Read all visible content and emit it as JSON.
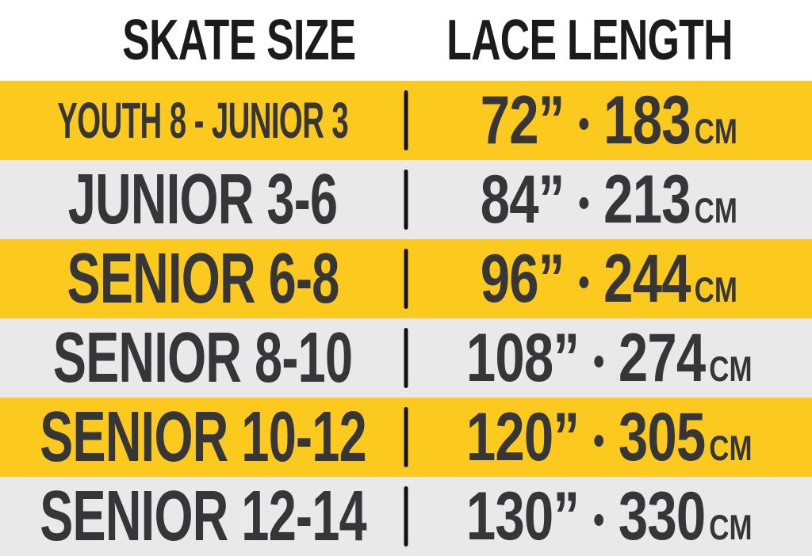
{
  "header": {
    "skate_size": "SKATE SIZE",
    "lace_length": "LACE LENGTH"
  },
  "rows": [
    {
      "skate_size": "YOUTH 8 - JUNIOR 3",
      "inches": "72”",
      "cm": "183",
      "unit": "CM",
      "band": "yellow",
      "compact": true
    },
    {
      "skate_size": "JUNIOR 3-6",
      "inches": "84”",
      "cm": "213",
      "unit": "CM",
      "band": "white",
      "compact": false
    },
    {
      "skate_size": "SENIOR 6-8",
      "inches": "96”",
      "cm": "244",
      "unit": "CM",
      "band": "yellow",
      "compact": false
    },
    {
      "skate_size": "SENIOR 8-10",
      "inches": "108”",
      "cm": "274",
      "unit": "CM",
      "band": "white",
      "compact": false
    },
    {
      "skate_size": "SENIOR 10-12",
      "inches": "120”",
      "cm": "305",
      "unit": "CM",
      "band": "yellow",
      "compact": false
    },
    {
      "skate_size": "SENIOR 12-14",
      "inches": "130”",
      "cm": "330",
      "unit": "CM",
      "band": "white",
      "compact": false
    }
  ],
  "chart_data": {
    "type": "table",
    "title": "Skate Size to Lace Length conversion",
    "columns": [
      "SKATE SIZE",
      "LACE LENGTH"
    ],
    "rows": [
      [
        "YOUTH 8 - JUNIOR 3",
        "72” • 183 CM"
      ],
      [
        "JUNIOR 3-6",
        "84” • 213 CM"
      ],
      [
        "SENIOR 6-8",
        "96” • 244 CM"
      ],
      [
        "SENIOR 8-10",
        "108” • 274 CM"
      ],
      [
        "SENIOR 10-12",
        "120” • 305 CM"
      ],
      [
        "SENIOR 12-14",
        "130” • 330 CM"
      ]
    ],
    "numeric": [
      {
        "skate_size": "YOUTH 8 - JUNIOR 3",
        "inches": 72,
        "cm": 183
      },
      {
        "skate_size": "JUNIOR 3-6",
        "inches": 84,
        "cm": 213
      },
      {
        "skate_size": "SENIOR 6-8",
        "inches": 96,
        "cm": 244
      },
      {
        "skate_size": "SENIOR 8-10",
        "inches": 108,
        "cm": 274
      },
      {
        "skate_size": "SENIOR 10-12",
        "inches": 120,
        "cm": 305
      },
      {
        "skate_size": "SENIOR 12-14",
        "inches": 130,
        "cm": 330
      }
    ]
  },
  "colors": {
    "band_yellow": "#FCC91E",
    "band_gray": "#E9E9E9",
    "row_text": "#363639",
    "header_text": "#1B1B1B",
    "divider": "#111111"
  }
}
